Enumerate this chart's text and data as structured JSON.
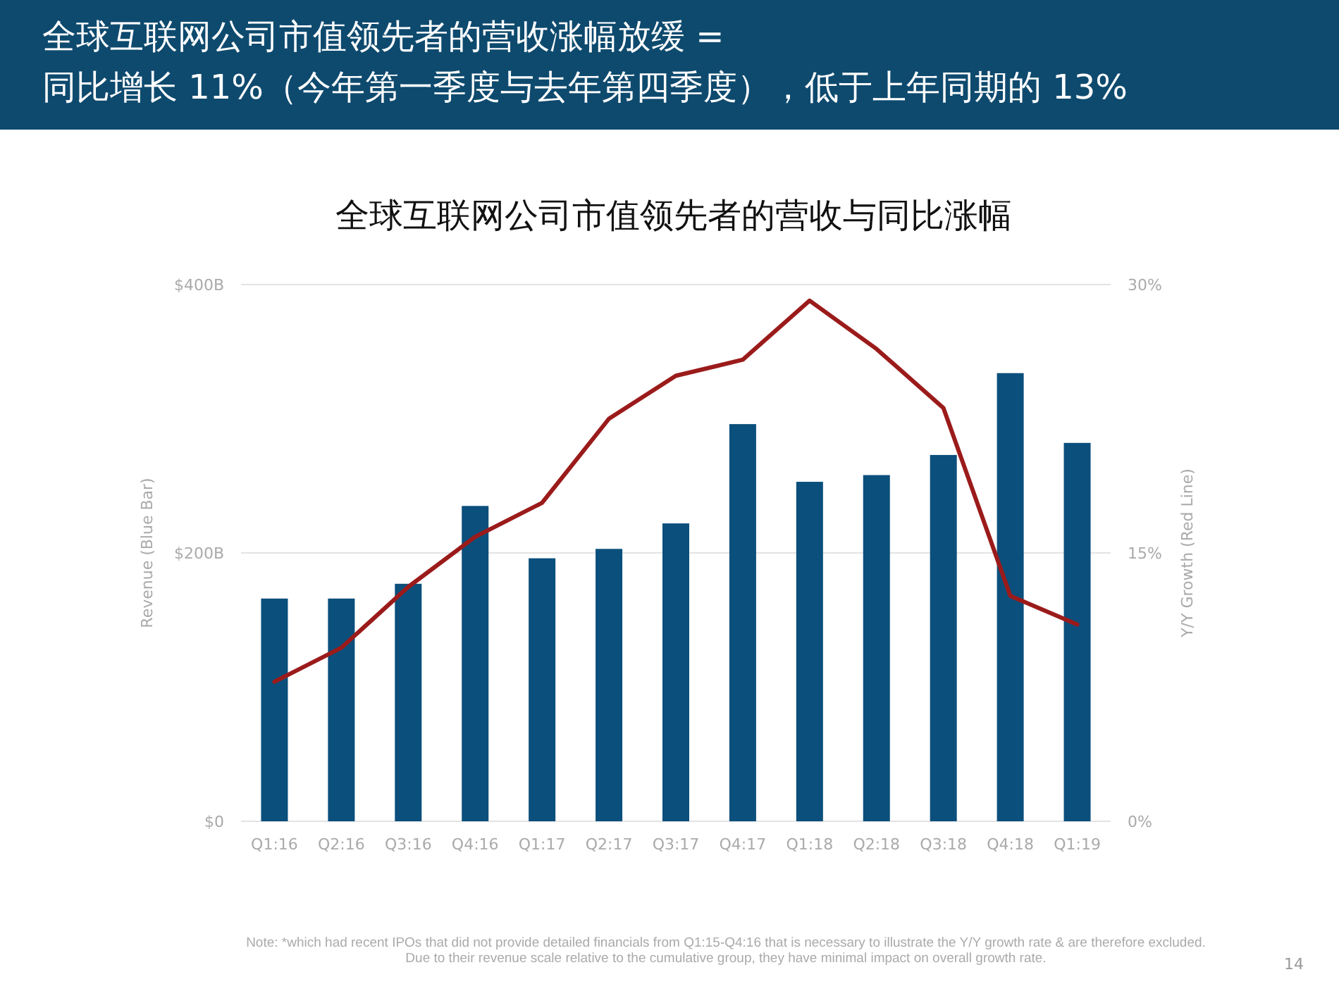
{
  "chart_data": {
    "type": "bar",
    "title": "全球互联网公司市值领先者的营收涨幅放缓 =\n同比增长 11%（今年第一季度与去年第四季度），低于上年同期的 13%",
    "subtitle": "全球互联网公司市值领先者的营收与同比涨幅",
    "ylabel": "Revenue (Blue Bar)",
    "y2label": "Y/Y Growth (Red Line)",
    "categories": [
      "Q1:16",
      "Q2:16",
      "Q3:16",
      "Q4:16",
      "Q1:17",
      "Q2:17",
      "Q3:17",
      "Q4:17",
      "Q1:18",
      "Q2:18",
      "Q3:18",
      "Q4:18",
      "Q1:19"
    ],
    "series": [
      {
        "color": "#0b4f7c",
        "values": [
          166,
          166,
          177,
          235,
          196,
          203,
          222,
          296,
          253,
          258,
          273,
          334,
          282
        ]
      },
      {
        "type": "line",
        "axis": "y2",
        "color": "#9b1b1b",
        "values": [
          7.8,
          9.7,
          13.1,
          15.9,
          17.8,
          22.5,
          24.9,
          25.8,
          29.1,
          26.4,
          23.1,
          12.6,
          11
        ]
      }
    ],
    "ylim": [
      0,
      400
    ],
    "yticks": [
      {
        "value": 0,
        "label": "$0"
      },
      {
        "value": 200,
        "label": "$200B"
      },
      {
        "value": 400,
        "label": "$400B"
      }
    ],
    "y2lim": [
      0,
      30
    ],
    "y2ticks": [
      {
        "value": 0,
        "label": "0%"
      },
      {
        "value": 15,
        "label": "15%"
      },
      {
        "value": 30,
        "label": "30%"
      }
    ],
    "grid": "y",
    "annotations": [
      "Note: *which had recent IPOs that did not provide detailed financials from Q1:15-Q4:16 that is necessary to illustrate the Y/Y growth rate & are therefore excluded. Due to their revenue scale relative to the cumulative group, they have minimal impact on overall growth rate.",
      "14"
    ]
  }
}
